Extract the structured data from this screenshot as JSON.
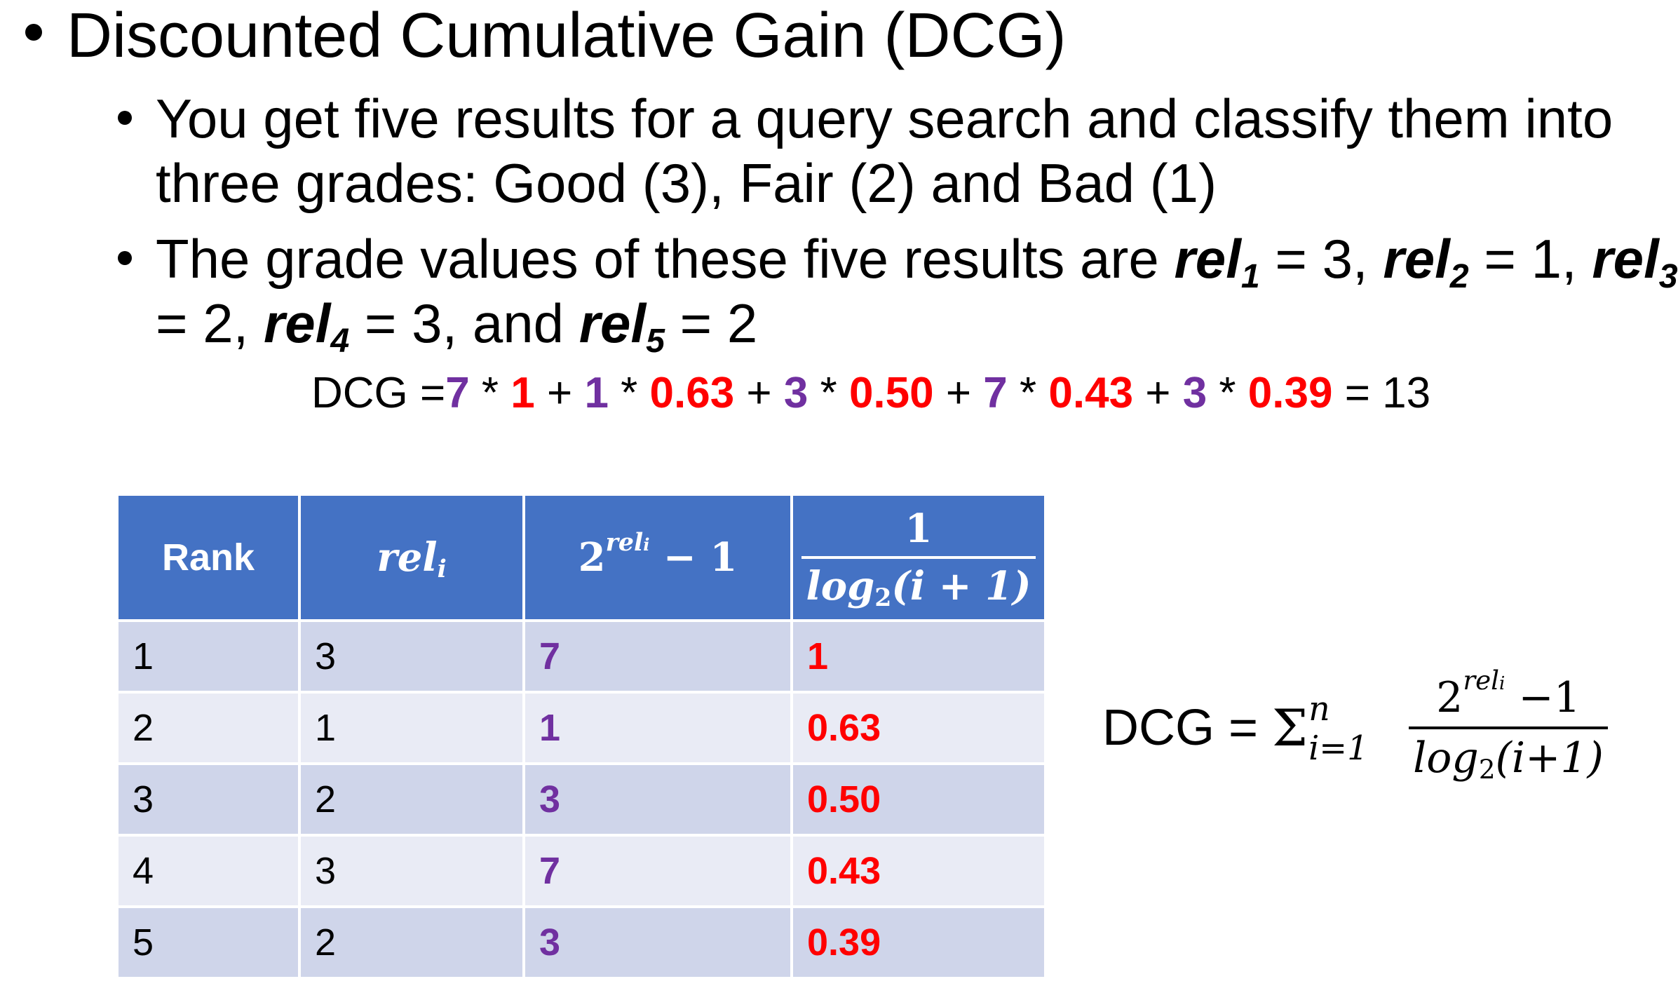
{
  "bullets": {
    "main": "Discounted Cumulative Gain (DCG)",
    "sub1_line1": "You get five results for a query search and classify them into",
    "sub1_line2": "three grades: Good (3), Fair (2) and Bad (1)",
    "sub2_line1_prefix": "The grade values of these five results are ",
    "sub2_line2_prefix": "= 2, ",
    "rel_word": "rel",
    "rels": [
      {
        "sub": "1",
        "after": " = 3, "
      },
      {
        "sub": "2",
        "after": " = 1, "
      },
      {
        "sub": "3",
        "after": ""
      },
      {
        "sub": "4",
        "after": " = 3, and "
      },
      {
        "sub": "5",
        "after": " = 2"
      }
    ]
  },
  "dcg_line": {
    "prefix": "DCG =",
    "terms": [
      {
        "gain": "7",
        "disc": "1",
        "sep": " + "
      },
      {
        "gain": "1",
        "disc": "0.63",
        "sep": " + "
      },
      {
        "gain": "3",
        "disc": "0.50",
        "sep": " + "
      },
      {
        "gain": "7",
        "disc": "0.43",
        "sep": " + "
      },
      {
        "gain": "3",
        "disc": "0.39",
        "sep": ""
      }
    ],
    "times": " * ",
    "result": " = 13"
  },
  "table": {
    "headers": {
      "rank": "Rank",
      "rel": "rel",
      "rel_sub": "i",
      "gain_base": "2",
      "gain_exp": "rel",
      "gain_exp_sub": "i",
      "gain_tail": " − 1",
      "disc_num": "1",
      "disc_den_prefix": "log",
      "disc_den_sub": "2",
      "disc_den_suffix": "(i + 1)"
    },
    "rows": [
      {
        "rank": "1",
        "rel": "3",
        "gain": "7",
        "disc": "1"
      },
      {
        "rank": "2",
        "rel": "1",
        "gain": "1",
        "disc": "0.63"
      },
      {
        "rank": "3",
        "rel": "2",
        "gain": "3",
        "disc": "0.50"
      },
      {
        "rank": "4",
        "rel": "3",
        "gain": "7",
        "disc": "0.43"
      },
      {
        "rank": "5",
        "rel": "2",
        "gain": "3",
        "disc": "0.39"
      }
    ]
  },
  "formula": {
    "lhs": "DCG = ",
    "sigma": "Σ",
    "upper": "n",
    "lower": "i=1",
    "num_base": "2",
    "num_exp": "rel",
    "num_exp_sub": "i",
    "num_tail": " −1",
    "den_prefix": "log",
    "den_sub": "2",
    "den_suffix": "(i+1)"
  },
  "colors": {
    "gain": "#7030a0",
    "discount": "#ff0000",
    "table_header": "#4472c4",
    "row_odd": "#cfd5ea",
    "row_even": "#e9ebf5"
  }
}
